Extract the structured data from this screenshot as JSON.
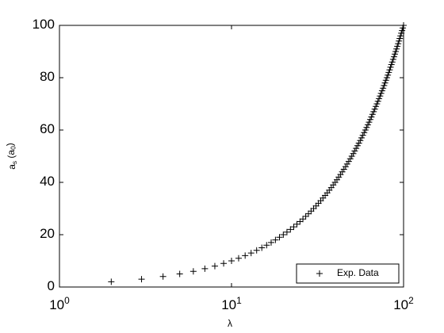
{
  "chart_data": {
    "type": "scatter",
    "x_label": "λ",
    "y_label": "a_s (a_0)",
    "xscale": "log",
    "xlim": [
      1,
      100
    ],
    "ylim": [
      0,
      100
    ],
    "xticks": [
      {
        "value": 1,
        "label": "10^0"
      },
      {
        "value": 10,
        "label": "10^1"
      },
      {
        "value": 100,
        "label": "10^2"
      }
    ],
    "yticks": [
      0,
      20,
      40,
      60,
      80,
      100
    ],
    "legend": "lower right",
    "series": [
      {
        "name": "Exp. Data",
        "color": "#000000",
        "marker": "+",
        "x": [
          2,
          3,
          4,
          5,
          6,
          7,
          8,
          9,
          10,
          11,
          12,
          13,
          14,
          15,
          16,
          17,
          18,
          19,
          20,
          21,
          22,
          23,
          24,
          25,
          26,
          27,
          28,
          29,
          30,
          31,
          32,
          33,
          34,
          35,
          36,
          37,
          38,
          39,
          40,
          41,
          42,
          43,
          44,
          45,
          46,
          47,
          48,
          49,
          50,
          51,
          52,
          53,
          54,
          55,
          56,
          57,
          58,
          59,
          60,
          61,
          62,
          63,
          64,
          65,
          66,
          67,
          68,
          69,
          70,
          71,
          72,
          73,
          74,
          75,
          76,
          77,
          78,
          79,
          80,
          81,
          82,
          83,
          84,
          85,
          86,
          87,
          88,
          89,
          90,
          91,
          92,
          93,
          94,
          95,
          96,
          97,
          98,
          99,
          100
        ],
        "values": [
          2,
          3,
          4,
          5,
          6,
          7,
          8,
          9,
          10,
          11,
          12,
          13,
          14,
          15,
          16,
          17,
          18,
          19,
          20,
          21,
          22,
          23,
          24,
          25,
          26,
          27,
          28,
          29,
          30,
          31,
          32,
          33,
          34,
          35,
          36,
          37,
          38,
          39,
          40,
          41,
          42,
          43,
          44,
          45,
          46,
          47,
          48,
          49,
          50,
          51,
          52,
          53,
          54,
          55,
          56,
          57,
          58,
          59,
          60,
          61,
          62,
          63,
          64,
          65,
          66,
          67,
          68,
          69,
          70,
          71,
          72,
          73,
          74,
          75,
          76,
          77,
          78,
          79,
          80,
          81,
          82,
          83,
          84,
          85,
          86,
          87,
          88,
          89,
          90,
          91,
          92,
          93,
          94,
          95,
          96,
          97,
          98,
          99,
          100
        ]
      }
    ]
  }
}
